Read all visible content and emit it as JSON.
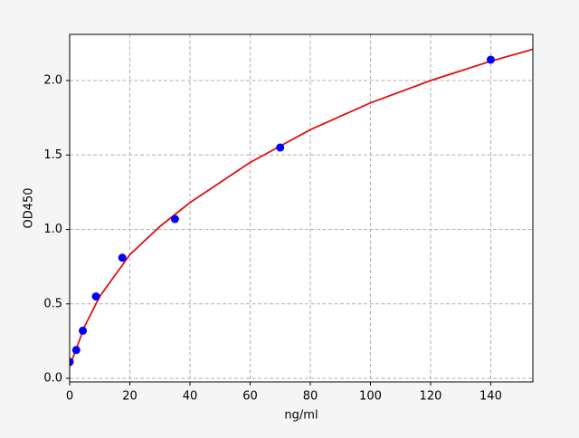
{
  "chart_data": {
    "type": "scatter",
    "xlabel": "ng/ml",
    "ylabel": "OD450",
    "points": {
      "x": [
        0,
        2.19,
        4.38,
        8.75,
        17.5,
        35,
        70,
        140
      ],
      "y": [
        0.11,
        0.19,
        0.32,
        0.55,
        0.81,
        1.07,
        1.55,
        2.14
      ],
      "color": "#0000ff"
    },
    "curve": {
      "x": [
        0,
        5,
        10,
        20,
        30,
        40,
        60,
        80,
        100,
        120,
        140,
        154
      ],
      "y": [
        0.08,
        0.35,
        0.55,
        0.83,
        1.02,
        1.18,
        1.45,
        1.67,
        1.85,
        2.0,
        2.13,
        2.21
      ],
      "color": "#dd1111"
    },
    "xlim": [
      0,
      154
    ],
    "ylim": [
      -0.024,
      2.31
    ],
    "xticks": [
      0,
      20,
      40,
      60,
      80,
      100,
      120,
      140
    ],
    "yticks": [
      {
        "value": 0,
        "label": "0.0"
      },
      {
        "value": 0.5,
        "label": "0.5"
      },
      {
        "value": 1,
        "label": "1.0"
      },
      {
        "value": 1.5,
        "label": "1.5"
      },
      {
        "value": 2,
        "label": "2.0"
      }
    ],
    "grid": true
  }
}
